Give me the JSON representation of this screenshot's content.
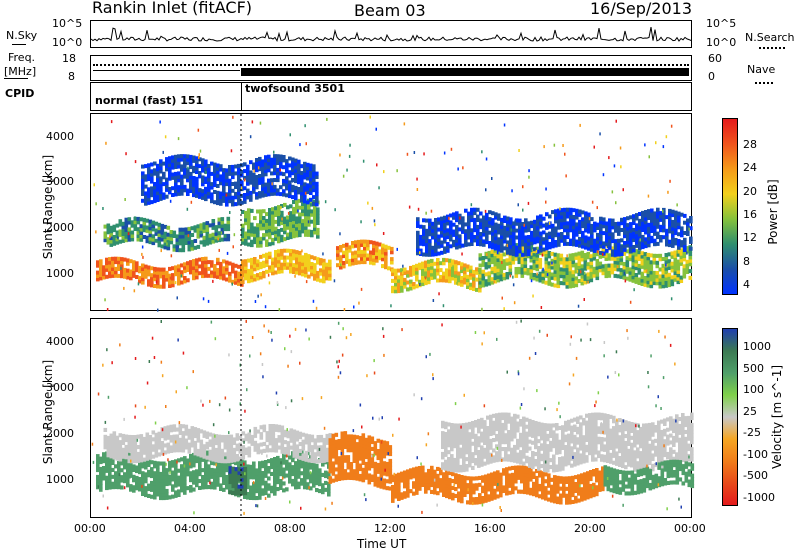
{
  "header": {
    "station": "Rankin Inlet (fitACF)",
    "beam": "Beam 03",
    "date": "16/Sep/2013"
  },
  "top_panels": {
    "nsky_label": "N.Sky",
    "nsky_ticks": [
      "10^5",
      "10^0"
    ],
    "nsearch_label": "N.Search",
    "nsearch_ticks": [
      "10^5",
      "10^0"
    ],
    "freq_label_1": "Freq.",
    "freq_label_2": "[MHz]",
    "freq_ticks": [
      "18",
      "8"
    ],
    "nave_label": "Nave",
    "nave_ticks": [
      "60",
      "0"
    ],
    "cpid_label": "CPID",
    "cpid_modes": [
      "normal (fast) 151",
      "twofsound 3501"
    ]
  },
  "chart_data": [
    {
      "type": "heatmap",
      "title": "",
      "xlabel": "Time UT",
      "ylabel": "Slant Range [km]",
      "xlim": [
        0,
        24
      ],
      "ylim": [
        200,
        4500
      ],
      "x_ticks": [
        "00:00",
        "04:00",
        "08:00",
        "12:00",
        "16:00",
        "20:00",
        "00:00"
      ],
      "y_ticks": [
        "1000",
        "2000",
        "3000",
        "4000"
      ],
      "colorbar_label": "Power [dB]",
      "colorbar_ticks": [
        "28",
        "24",
        "20",
        "16",
        "12",
        "8",
        "4"
      ],
      "colorscale": [
        "#0033ff",
        "#1a4fa8",
        "#2f8f6e",
        "#86c23c",
        "#f2d01c",
        "#f59a1a",
        "#f0541c",
        "#e41a1c"
      ],
      "bands": [
        {
          "x": [
            0.2,
            6.0
          ],
          "y": [
            800,
            1250
          ],
          "value": 26
        },
        {
          "x": [
            6.0,
            9.5
          ],
          "y": [
            900,
            1400
          ],
          "value": 22
        },
        {
          "x": [
            9.8,
            12.0
          ],
          "y": [
            1100,
            1600
          ],
          "value": 24
        },
        {
          "x": [
            12.0,
            15.5
          ],
          "y": [
            700,
            1200
          ],
          "value": 20
        },
        {
          "x": [
            15.5,
            24.0
          ],
          "y": [
            800,
            1500
          ],
          "value": 16
        },
        {
          "x": [
            0.5,
            5.5
          ],
          "y": [
            1600,
            2100
          ],
          "value": 12
        },
        {
          "x": [
            6.0,
            9.0
          ],
          "y": [
            1700,
            2500
          ],
          "value": 14
        },
        {
          "x": [
            13.0,
            24.0
          ],
          "y": [
            1500,
            2300
          ],
          "value": 6
        },
        {
          "x": [
            2.0,
            9.0
          ],
          "y": [
            2600,
            3500
          ],
          "value": 6
        }
      ]
    },
    {
      "type": "heatmap",
      "title": "",
      "xlabel": "Time UT",
      "ylabel": "Slant Range [km]",
      "xlim": [
        0,
        24
      ],
      "ylim": [
        200,
        4500
      ],
      "x_ticks": [
        "00:00",
        "04:00",
        "08:00",
        "12:00",
        "16:00",
        "20:00",
        "00:00"
      ],
      "y_ticks": [
        "1000",
        "2000",
        "3000",
        "4000"
      ],
      "colorbar_label": "Velocity [m s^-1]",
      "colorbar_ticks": [
        "1000",
        "500",
        "100",
        "25",
        "-25",
        "-100",
        "-500",
        "-1000"
      ],
      "colorscale": [
        "#2040b0",
        "#3c7a52",
        "#4f9f6a",
        "#7fd04a",
        "#c8c8c8",
        "#f5a623",
        "#f07d1a",
        "#e84a1a",
        "#e41a1c"
      ],
      "bands": [
        {
          "x": [
            0.2,
            9.5
          ],
          "y": [
            700,
            1500
          ],
          "value": 200
        },
        {
          "x": [
            5.5,
            6.2
          ],
          "y": [
            800,
            1400
          ],
          "value": 900
        },
        {
          "x": [
            0.5,
            9.5
          ],
          "y": [
            1500,
            2100
          ],
          "value": 0
        },
        {
          "x": [
            9.5,
            12.0
          ],
          "y": [
            900,
            1900
          ],
          "value": -150
        },
        {
          "x": [
            12.0,
            20.5
          ],
          "y": [
            600,
            1200
          ],
          "value": -200
        },
        {
          "x": [
            14.0,
            24.0
          ],
          "y": [
            1300,
            2300
          ],
          "value": 0
        },
        {
          "x": [
            20.5,
            24.0
          ],
          "y": [
            800,
            1300
          ],
          "value": 200
        }
      ]
    }
  ]
}
